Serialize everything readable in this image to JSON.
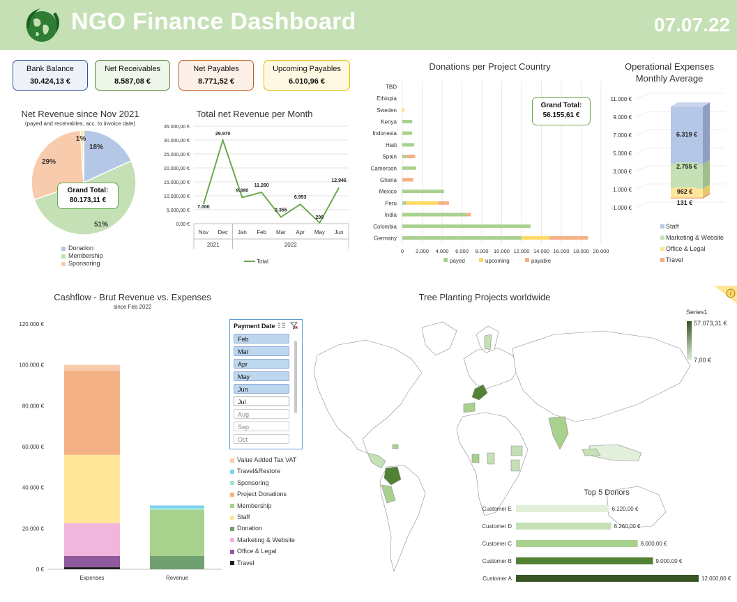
{
  "header": {
    "title": "NGO Finance Dashboard",
    "date": "07.07.22"
  },
  "kpis": [
    {
      "label": "Bank Balance",
      "value": "30.424,13 €",
      "border": "#2f5597",
      "bg": "#edf2fa"
    },
    {
      "label": "Net Receivables",
      "value": "8.587,08 €",
      "border": "#548235",
      "bg": "#eef6ea"
    },
    {
      "label": "Net Payables",
      "value": "8.771,52 €",
      "border": "#c55a11",
      "bg": "#fdf0e8"
    },
    {
      "label": "Upcoming Payables",
      "value": "6.010,96 €",
      "border": "#e6b800",
      "bg": "#fff9e3"
    }
  ],
  "pie": {
    "title": "Net Revenue since Nov 2021",
    "subtitle": "(payed and receivables, acc. to invoice date)",
    "total_label": "Grand Total:",
    "total_value": "80.173,11 €",
    "chart_data": {
      "type": "pie",
      "slices": [
        {
          "name": "Donation",
          "value": 18,
          "label": "18%",
          "color": "#b4c7e7"
        },
        {
          "name": "Membership",
          "value": 51,
          "label": "51%",
          "color": "#c5e0b4"
        },
        {
          "name": "Sponsoring",
          "value": 29,
          "label": "29%",
          "color": "#f8cbad"
        },
        {
          "name": "",
          "value": 1,
          "label": "1%",
          "color": "#ffe699"
        }
      ]
    }
  },
  "line": {
    "title": "Total net Revenue per Month",
    "legend": "Total",
    "years": [
      "2021",
      "2022"
    ],
    "yticks": [
      "35.000,00 €",
      "30.000,00 €",
      "25.000,00 €",
      "20.000,00 €",
      "15.000,00 €",
      "10.000,00 €",
      "5.000,00 €",
      "0,00 €"
    ],
    "chart_data": {
      "type": "line",
      "x": [
        "Nov",
        "Dec",
        "Jan",
        "Feb",
        "Mar",
        "Apr",
        "May",
        "Jun"
      ],
      "values": [
        7000,
        29970,
        9390,
        11260,
        2355,
        6953,
        299,
        12946
      ],
      "labels": [
        "7.000",
        "29.970",
        "9.390",
        "11.260",
        "2.355",
        "6.953",
        "299",
        "12.946"
      ],
      "ylim": [
        0,
        35000
      ],
      "color": "#6aa84f"
    }
  },
  "donations": {
    "title": "Donations per Project Country",
    "total_label": "Grand Total:",
    "total_value": "56.155,61 €",
    "xticks": [
      "0",
      "2.000",
      "4.000",
      "6.000",
      "8.000",
      "10.000",
      "12.000",
      "14.000",
      "16.000",
      "18.000",
      "20.000"
    ],
    "chart_data": {
      "type": "bar",
      "orientation": "horizontal",
      "stacked": true,
      "categories": [
        "TBD",
        "Ethiopia",
        "Sweden",
        "Kenya",
        "Indonesia",
        "Haiti",
        "Spain",
        "Cameroon",
        "Ghana",
        "Mexico",
        "Peru",
        "India",
        "Colombia",
        "Germany"
      ],
      "series": [
        {
          "name": "payed",
          "color": "#a9d18e",
          "values": [
            0,
            0,
            0,
            1000,
            1000,
            1200,
            400,
            1400,
            0,
            4200,
            400,
            6400,
            12900,
            12000
          ]
        },
        {
          "name": "upcoming",
          "color": "#ffd966",
          "values": [
            0,
            0,
            200,
            0,
            0,
            0,
            0,
            0,
            0,
            0,
            3200,
            0,
            0,
            2800
          ]
        },
        {
          "name": "payable",
          "color": "#f4b183",
          "values": [
            0,
            0,
            0,
            0,
            0,
            0,
            900,
            0,
            1100,
            0,
            1100,
            500,
            0,
            3900
          ]
        }
      ],
      "xlim": [
        0,
        20000
      ]
    }
  },
  "opex": {
    "title": "Operational Expenses",
    "title2": "Monthly Average",
    "yticks": [
      "11.000 €",
      "9.000 €",
      "7.000 €",
      "5.000 €",
      "3.000 €",
      "1.000 €",
      "-1.000 €"
    ],
    "chart_data": {
      "type": "bar",
      "stacked": true,
      "series": [
        {
          "name": "Staff",
          "value": 6319,
          "label": "6.319 €",
          "color": "#b4c7e7"
        },
        {
          "name": "Marketing & Website",
          "value": 2755,
          "label": "2.755 €",
          "color": "#c5e0b4"
        },
        {
          "name": "Office & Legal",
          "value": 962,
          "label": "962 €",
          "color": "#ffe699"
        },
        {
          "name": "Travel",
          "value": 131,
          "label": "131 €",
          "color": "#f4b183"
        }
      ],
      "ylim": [
        -1000,
        11000
      ]
    }
  },
  "cashflow": {
    "title": "Cashflow - Brut Revenue vs. Expenses",
    "subtitle": "since Feb 2022",
    "yticks": [
      "120.000 €",
      "100.000 €",
      "80.000 €",
      "60.000 €",
      "40.000 €",
      "20.000 €",
      "0 €"
    ],
    "chart_data": {
      "type": "bar",
      "stacked": true,
      "categories": [
        "Expenses",
        "Revenue"
      ],
      "series": [
        {
          "name": "Travel",
          "color": "#1f1f1f",
          "values": [
            1000,
            0
          ]
        },
        {
          "name": "Office & Legal",
          "color": "#8e5a9b",
          "values": [
            5500,
            0
          ]
        },
        {
          "name": "Marketing & Website",
          "color": "#f0b6dc",
          "values": [
            16000,
            0
          ]
        },
        {
          "name": "Donation",
          "color": "#70a070",
          "values": [
            0,
            6500
          ]
        },
        {
          "name": "Staff",
          "color": "#ffe699",
          "values": [
            33500,
            0
          ]
        },
        {
          "name": "Membership",
          "color": "#a9d18e",
          "values": [
            0,
            22500
          ]
        },
        {
          "name": "Project Donations",
          "color": "#f4b183",
          "values": [
            41000,
            0
          ]
        },
        {
          "name": "Sponsoring",
          "color": "#9fe6d6",
          "values": [
            0,
            1000
          ]
        },
        {
          "name": "Travel&Restore",
          "color": "#7fd0f0",
          "values": [
            0,
            1200
          ]
        },
        {
          "name": "Value Added Tax VAT",
          "color": "#f8cbad",
          "values": [
            3000,
            0
          ]
        }
      ],
      "ylim": [
        0,
        120000
      ]
    },
    "legend_order": [
      "Value Added Tax VAT",
      "Travel&Restore",
      "Sponsoring",
      "Project Donations",
      "Membership",
      "Staff",
      "Donation",
      "Marketing & Website",
      "Office & Legal",
      "Travel"
    ]
  },
  "slicer": {
    "title": "Payment Date",
    "items": [
      {
        "label": "Feb",
        "state": "sel"
      },
      {
        "label": "Mar",
        "state": "sel"
      },
      {
        "label": "Apr",
        "state": "sel"
      },
      {
        "label": "May",
        "state": "sel"
      },
      {
        "label": "Jun",
        "state": "sel"
      },
      {
        "label": "Jul",
        "state": "nsel"
      },
      {
        "label": "Aug",
        "state": "off"
      },
      {
        "label": "Sep",
        "state": "off"
      },
      {
        "label": "Oct",
        "state": "off"
      }
    ]
  },
  "map": {
    "title": "Tree Planting Projects worldwide",
    "legend_series": "Series1",
    "legend_max": "57.073,31 €",
    "legend_min": "7,00 €"
  },
  "donors": {
    "title": "Top 5 Donors",
    "chart_data": {
      "type": "bar",
      "orientation": "horizontal",
      "categories": [
        "Customer E",
        "Customer D",
        "Customer C",
        "Customer B",
        "Customer A"
      ],
      "values": [
        6120,
        6260,
        8000,
        9000,
        12000
      ],
      "labels": [
        "6.120,00 €",
        "6.260,00 €",
        "8.000,00 €",
        "9.000,00 €",
        "12.000,00 €"
      ],
      "colors": [
        "#e2efda",
        "#c5e0b4",
        "#a9d18e",
        "#548235",
        "#375623"
      ]
    }
  }
}
